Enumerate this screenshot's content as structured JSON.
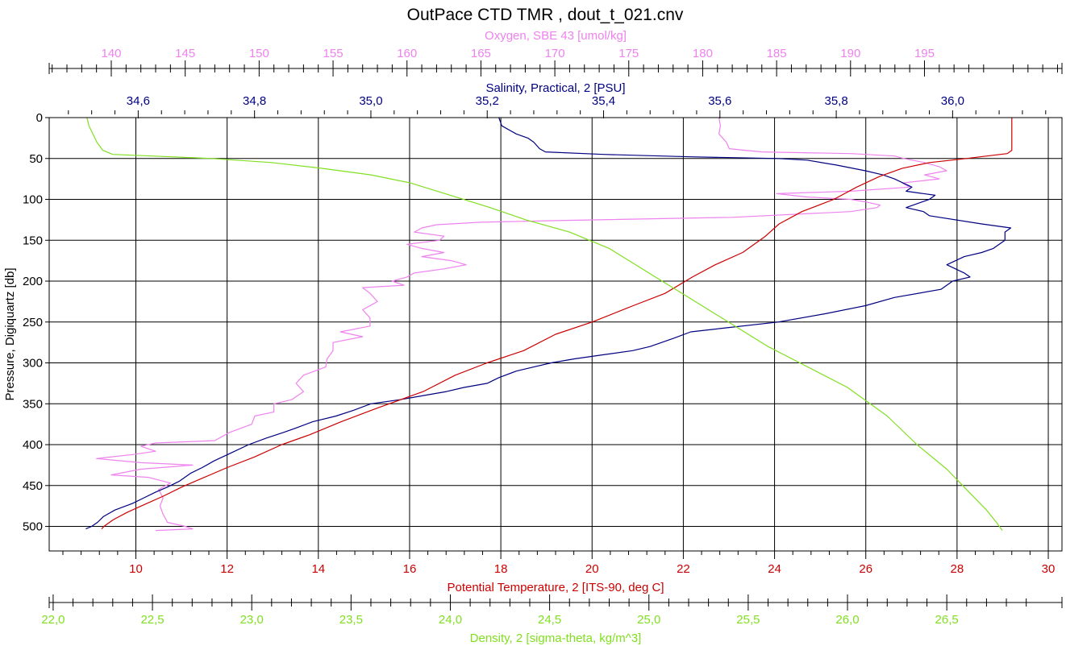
{
  "chart_data": {
    "type": "line",
    "title": "OutPace CTD TMR , dout_t_021.cnv",
    "colors": {
      "oxygen": "#ee82ee",
      "salinity": "#000080",
      "temperature": "#cc0000",
      "density": "#80e020",
      "grid": "#000000"
    },
    "grid": true,
    "y_axis": {
      "label": "Pressure, Digiquartz [db]",
      "range": [
        0,
        530
      ],
      "inverted": true,
      "ticks": [
        0,
        50,
        100,
        150,
        200,
        250,
        300,
        350,
        400,
        450,
        500
      ],
      "tick_labels": [
        "0",
        "50",
        "100",
        "150",
        "200",
        "250",
        "300",
        "350",
        "400",
        "450",
        "500"
      ]
    },
    "x_axes": {
      "oxygen": {
        "label": "Oxygen, SBE 43 [umol/kg]",
        "position": "top",
        "range": [
          135.8,
          204.3
        ],
        "ticks": [
          140,
          145,
          150,
          155,
          160,
          165,
          170,
          175,
          180,
          185,
          190,
          195
        ],
        "tick_labels": [
          "140",
          "145",
          "150",
          "155",
          "160",
          "165",
          "170",
          "175",
          "180",
          "185",
          "190",
          "195"
        ]
      },
      "salinity": {
        "label": "Salinity, Practical, 2 [PSU]",
        "position": "top",
        "range": [
          34.447,
          36.188
        ],
        "ticks": [
          34.6,
          34.8,
          35.0,
          35.2,
          35.4,
          35.6,
          35.8,
          36.0
        ],
        "tick_labels": [
          "34,6",
          "34,8",
          "35,0",
          "35,2",
          "35,4",
          "35,6",
          "35,8",
          "36,0"
        ]
      },
      "temperature": {
        "label": "Potential Temperature, 2 [ITS-90, deg C]",
        "position": "bottom",
        "range": [
          8.1,
          30.3
        ],
        "ticks": [
          10,
          12,
          14,
          16,
          18,
          20,
          22,
          24,
          26,
          28,
          30
        ],
        "tick_labels": [
          "10",
          "12",
          "14",
          "16",
          "18",
          "20",
          "22",
          "24",
          "26",
          "28",
          "30"
        ]
      },
      "density": {
        "label": "Density, 2 [sigma-theta, kg/m^3]",
        "position": "bottom",
        "range": [
          21.98,
          27.08
        ],
        "ticks": [
          22.0,
          22.5,
          23.0,
          23.5,
          24.0,
          24.5,
          25.0,
          25.5,
          26.0,
          26.5
        ],
        "tick_labels": [
          "22,0",
          "22,5",
          "23,0",
          "23,5",
          "24,0",
          "24,5",
          "25,0",
          "25,5",
          "26,0",
          "26,5"
        ]
      }
    },
    "series": [
      {
        "axis": "oxygen",
        "points": [
          [
            181.1,
            0
          ],
          [
            181.2,
            10
          ],
          [
            181.1,
            20
          ],
          [
            181.6,
            30
          ],
          [
            181.8,
            38
          ],
          [
            184,
            42
          ],
          [
            190,
            44
          ],
          [
            193,
            47
          ],
          [
            193.6,
            50
          ],
          [
            195,
            55
          ],
          [
            196,
            60
          ],
          [
            196.5,
            65
          ],
          [
            195,
            70
          ],
          [
            196,
            75
          ],
          [
            193.5,
            80
          ],
          [
            194,
            85
          ],
          [
            190,
            90
          ],
          [
            185,
            93
          ],
          [
            187,
            97
          ],
          [
            190,
            100
          ],
          [
            191,
            103
          ],
          [
            192,
            107
          ],
          [
            191.8,
            110
          ],
          [
            190,
            115
          ],
          [
            182,
            122
          ],
          [
            170,
            126
          ],
          [
            165,
            128
          ],
          [
            162,
            131
          ],
          [
            161,
            135
          ],
          [
            160.5,
            140
          ],
          [
            162.5,
            145
          ],
          [
            162.2,
            150
          ],
          [
            160,
            155
          ],
          [
            161,
            160
          ],
          [
            162.5,
            165
          ],
          [
            161,
            170
          ],
          [
            163,
            175
          ],
          [
            164,
            180
          ],
          [
            162.5,
            185
          ],
          [
            160.5,
            190
          ],
          [
            160,
            195
          ],
          [
            159,
            200
          ],
          [
            159.8,
            205
          ],
          [
            157,
            208
          ],
          [
            157.5,
            215
          ],
          [
            158,
            225
          ],
          [
            157,
            235
          ],
          [
            157.5,
            245
          ],
          [
            157.5,
            255
          ],
          [
            155.5,
            262
          ],
          [
            157,
            268
          ],
          [
            155,
            275
          ],
          [
            155,
            285
          ],
          [
            154.6,
            295
          ],
          [
            154.5,
            305
          ],
          [
            153,
            315
          ],
          [
            152.5,
            325
          ],
          [
            153,
            335
          ],
          [
            152.2,
            345
          ],
          [
            151,
            350
          ],
          [
            151,
            360
          ],
          [
            149.7,
            365
          ],
          [
            149.5,
            375
          ],
          [
            148,
            385
          ],
          [
            147,
            395
          ],
          [
            143,
            398
          ],
          [
            142,
            402
          ],
          [
            143,
            408
          ],
          [
            141.5,
            412
          ],
          [
            139,
            417
          ],
          [
            142,
            422
          ],
          [
            145.5,
            425
          ],
          [
            142,
            430
          ],
          [
            140,
            437
          ],
          [
            142.5,
            440
          ],
          [
            144,
            447
          ],
          [
            143.2,
            455
          ],
          [
            143.5,
            465
          ],
          [
            143.3,
            475
          ],
          [
            143.5,
            485
          ],
          [
            143.8,
            495
          ],
          [
            145,
            500
          ],
          [
            145.5,
            503
          ],
          [
            143,
            505
          ]
        ]
      },
      {
        "axis": "salinity",
        "points": [
          [
            35.22,
            0
          ],
          [
            35.225,
            10
          ],
          [
            35.25,
            20
          ],
          [
            35.27,
            25
          ],
          [
            35.28,
            30
          ],
          [
            35.29,
            38
          ],
          [
            35.3,
            42
          ],
          [
            35.4,
            45
          ],
          [
            35.55,
            48
          ],
          [
            35.7,
            50
          ],
          [
            35.75,
            52
          ],
          [
            35.8,
            58
          ],
          [
            35.85,
            65
          ],
          [
            35.88,
            70
          ],
          [
            35.9,
            75
          ],
          [
            35.93,
            85
          ],
          [
            35.92,
            90
          ],
          [
            35.97,
            95
          ],
          [
            35.96,
            100
          ],
          [
            35.92,
            110
          ],
          [
            35.95,
            115
          ],
          [
            35.96,
            120
          ],
          [
            36.05,
            130
          ],
          [
            36.1,
            135
          ],
          [
            36.09,
            140
          ],
          [
            36.09,
            150
          ],
          [
            36.07,
            160
          ],
          [
            36.05,
            165
          ],
          [
            36.02,
            170
          ],
          [
            35.99,
            180
          ],
          [
            36.02,
            190
          ],
          [
            36.03,
            195
          ],
          [
            36.0,
            200
          ],
          [
            35.98,
            210
          ],
          [
            35.9,
            220
          ],
          [
            35.85,
            230
          ],
          [
            35.78,
            240
          ],
          [
            35.7,
            250
          ],
          [
            35.6,
            258
          ],
          [
            35.55,
            262
          ],
          [
            35.52,
            270
          ],
          [
            35.48,
            280
          ],
          [
            35.45,
            285
          ],
          [
            35.4,
            290
          ],
          [
            35.35,
            295
          ],
          [
            35.31,
            300
          ],
          [
            35.28,
            305
          ],
          [
            35.25,
            310
          ],
          [
            35.22,
            318
          ],
          [
            35.2,
            325
          ],
          [
            35.16,
            330
          ],
          [
            35.13,
            335
          ],
          [
            35.09,
            340
          ],
          [
            35.05,
            345
          ],
          [
            35.0,
            350
          ],
          [
            34.97,
            358
          ],
          [
            34.94,
            365
          ],
          [
            34.9,
            372
          ],
          [
            34.87,
            380
          ],
          [
            34.85,
            385
          ],
          [
            34.82,
            392
          ],
          [
            34.79,
            400
          ],
          [
            34.76,
            410
          ],
          [
            34.73,
            420
          ],
          [
            34.71,
            428
          ],
          [
            34.69,
            435
          ],
          [
            34.67,
            445
          ],
          [
            34.65,
            452
          ],
          [
            34.63,
            458
          ],
          [
            34.61,
            465
          ],
          [
            34.59,
            472
          ],
          [
            34.56,
            480
          ],
          [
            34.54,
            488
          ],
          [
            34.53,
            495
          ],
          [
            34.52,
            500
          ],
          [
            34.51,
            503
          ]
        ]
      },
      {
        "axis": "temperature",
        "points": [
          [
            29.2,
            0
          ],
          [
            29.2,
            10
          ],
          [
            29.2,
            20
          ],
          [
            29.2,
            30
          ],
          [
            29.2,
            40
          ],
          [
            29.1,
            44
          ],
          [
            28.8,
            46
          ],
          [
            28.2,
            50
          ],
          [
            27.4,
            55
          ],
          [
            26.8,
            62
          ],
          [
            26.3,
            72
          ],
          [
            25.8,
            85
          ],
          [
            25.3,
            100
          ],
          [
            24.6,
            115
          ],
          [
            24.1,
            130
          ],
          [
            23.8,
            145
          ],
          [
            23.3,
            165
          ],
          [
            22.7,
            180
          ],
          [
            22.2,
            195
          ],
          [
            21.6,
            215
          ],
          [
            20.9,
            230
          ],
          [
            20.0,
            250
          ],
          [
            19.2,
            265
          ],
          [
            18.5,
            285
          ],
          [
            17.7,
            300
          ],
          [
            17.0,
            315
          ],
          [
            16.3,
            335
          ],
          [
            15.3,
            355
          ],
          [
            14.5,
            372
          ],
          [
            13.8,
            388
          ],
          [
            13.2,
            400
          ],
          [
            12.6,
            415
          ],
          [
            12.0,
            428
          ],
          [
            11.5,
            440
          ],
          [
            11.0,
            452
          ],
          [
            10.6,
            463
          ],
          [
            10.2,
            473
          ],
          [
            9.8,
            483
          ],
          [
            9.5,
            492
          ],
          [
            9.3,
            500
          ],
          [
            9.25,
            503
          ]
        ]
      },
      {
        "axis": "density",
        "points": [
          [
            22.17,
            0
          ],
          [
            22.18,
            10
          ],
          [
            22.2,
            20
          ],
          [
            22.22,
            30
          ],
          [
            22.25,
            40
          ],
          [
            22.3,
            45
          ],
          [
            22.5,
            47
          ],
          [
            22.8,
            50
          ],
          [
            23.1,
            55
          ],
          [
            23.35,
            62
          ],
          [
            23.6,
            70
          ],
          [
            23.8,
            80
          ],
          [
            24.0,
            95
          ],
          [
            24.2,
            110
          ],
          [
            24.38,
            125
          ],
          [
            24.6,
            140
          ],
          [
            24.8,
            160
          ],
          [
            25.0,
            190
          ],
          [
            25.2,
            220
          ],
          [
            25.4,
            250
          ],
          [
            25.6,
            280
          ],
          [
            25.8,
            305
          ],
          [
            26.0,
            330
          ],
          [
            26.2,
            365
          ],
          [
            26.35,
            400
          ],
          [
            26.5,
            430
          ],
          [
            26.6,
            455
          ],
          [
            26.7,
            480
          ],
          [
            26.75,
            495
          ],
          [
            26.78,
            505
          ]
        ]
      }
    ]
  }
}
